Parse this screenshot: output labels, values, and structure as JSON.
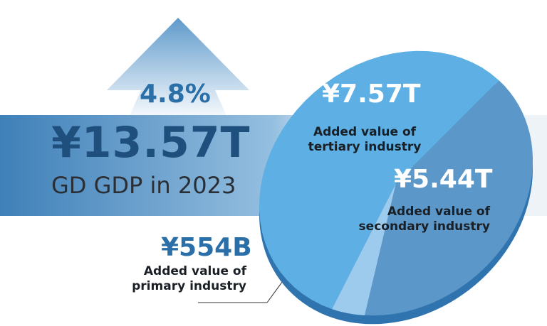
{
  "growth": "4.8%",
  "total": {
    "value": "¥13.57T",
    "label": "GD GDP in 2023"
  },
  "colors": {
    "tertiary": "#5eb0e4",
    "secondary": "#5b97c8",
    "primary": "#9dcbee",
    "side": "#2f74ae",
    "band": "#3d7fb8"
  },
  "chart_data": {
    "type": "pie",
    "unit": "trillion yuan",
    "slices": [
      {
        "name": "tertiary",
        "value": 7.57,
        "value_label": "¥7.57T",
        "label": "Added value of tertiary industry"
      },
      {
        "name": "secondary",
        "value": 5.44,
        "value_label": "¥5.44T",
        "label": "Added value of secondary industry"
      },
      {
        "name": "primary",
        "value": 0.554,
        "value_label": "¥554B",
        "label": "Added value of primary industry"
      }
    ]
  },
  "labels": {
    "tertiary": [
      "Added value of",
      "tertiary industry"
    ],
    "secondary": [
      "Added value of",
      "secondary industry"
    ],
    "primary": [
      "Added value of",
      "primary industry"
    ]
  }
}
